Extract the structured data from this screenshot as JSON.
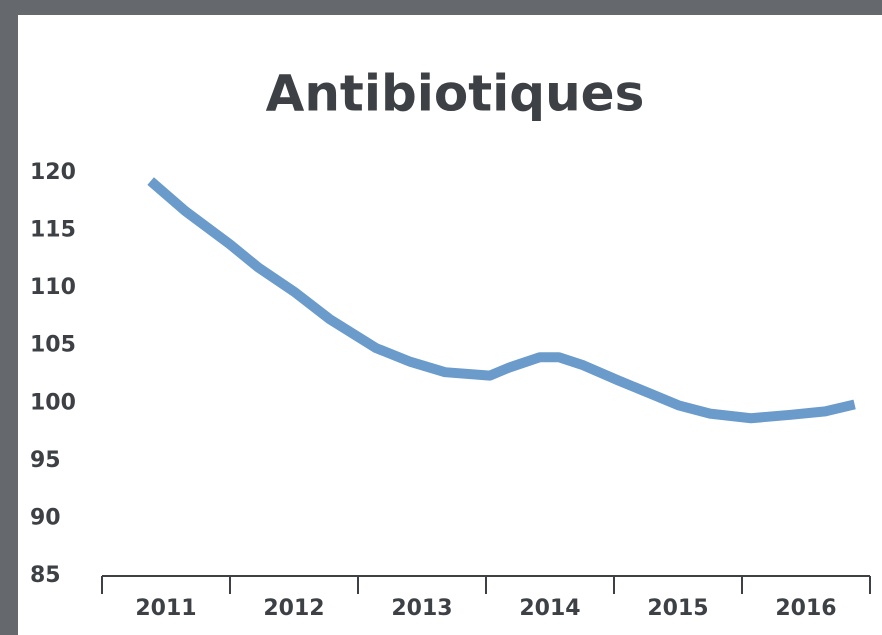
{
  "chart_data": {
    "type": "line",
    "title": "Antibiotiques",
    "categories": [
      "2011",
      "2012",
      "2013",
      "2014",
      "2015",
      "2016"
    ],
    "xlim": [
      2011,
      2017
    ],
    "x": [
      2011.38,
      2011.65,
      2012.0,
      2012.22,
      2012.5,
      2012.78,
      2013.14,
      2013.41,
      2013.68,
      2014.03,
      2014.18,
      2014.42,
      2014.57,
      2014.76,
      2015.03,
      2015.27,
      2015.51,
      2015.75,
      2016.07,
      2016.38,
      2016.65,
      2016.88
    ],
    "series": [
      {
        "color": "#6a9bcb",
        "values": [
          119.3,
          116.7,
          113.8,
          111.8,
          109.7,
          107.3,
          104.8,
          103.6,
          102.7,
          102.4,
          103.1,
          104.0,
          104.0,
          103.3,
          102.0,
          100.9,
          99.8,
          99.1,
          98.7,
          99.0,
          99.3,
          99.9
        ]
      }
    ],
    "ylim": [
      85,
      120
    ],
    "yticks": [
      85,
      90,
      95,
      100,
      105,
      110,
      115,
      120
    ],
    "grid": false
  }
}
